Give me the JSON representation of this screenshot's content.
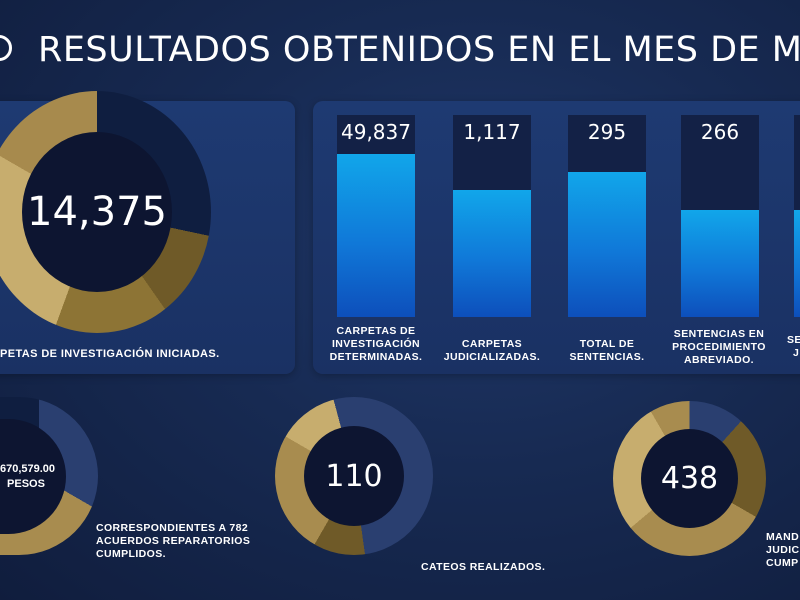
{
  "header": {
    "title": "RESULTADOS OBTENIDOS EN EL MES DE M"
  },
  "main_stat": {
    "value": "14,375",
    "caption": "PETAS DE INVESTIGACIÓN INICIADAS.",
    "fill_fraction": 0.78
  },
  "bars": [
    {
      "value": "49,837",
      "label_lines": [
        "CARPETAS DE",
        "INVESTIGACIÓN",
        "DETERMINADAS."
      ],
      "fill_percent": 81
    },
    {
      "value": "1,117",
      "label_lines": [
        "CARPETAS",
        "JUDICIALIZADAS."
      ],
      "fill_percent": 63
    },
    {
      "value": "295",
      "label_lines": [
        "TOTAL DE",
        "SENTENCIAS."
      ],
      "fill_percent": 72
    },
    {
      "value": "266",
      "label_lines": [
        "SENTENCIAS EN",
        "PROCEDIMIENTO",
        "ABREVIADO."
      ],
      "fill_percent": 53
    },
    {
      "value": "",
      "label_lines": [
        "SE",
        "J"
      ],
      "fill_percent": 53
    }
  ],
  "bottom": {
    "reparations": {
      "amount": ",670,579.00",
      "unit": "PESOS",
      "caption_lines": [
        "CORRESPONDIENTES A 782",
        "ACUERDOS REPARATORIOS",
        "CUMPLIDOS."
      ]
    },
    "cateos": {
      "value": "110",
      "caption": "CATEOS REALIZADOS."
    },
    "mandamientos": {
      "value": "438",
      "caption_lines": [
        "MAND",
        "JUDIC",
        "CUMP"
      ]
    }
  },
  "colors": {
    "gold": "#b69a5c",
    "gold_dark": "#7d6630",
    "navy_track": "#0f1e40",
    "bar_blue": "#1190e0",
    "background": "#172a52"
  }
}
